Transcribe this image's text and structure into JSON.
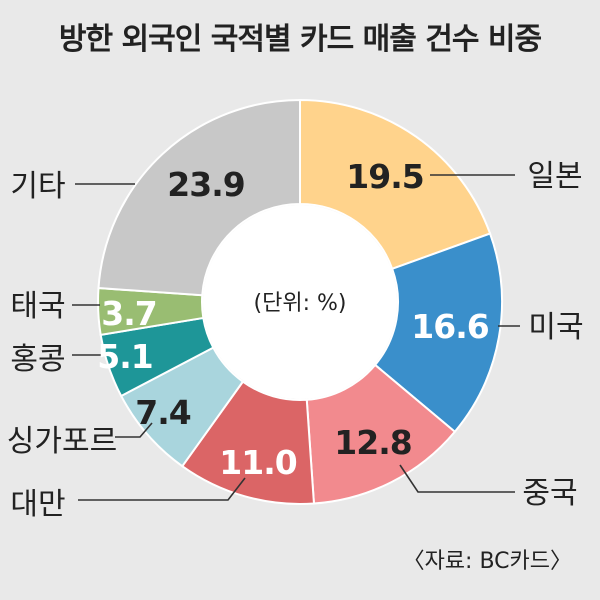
{
  "title": "방한 외국인 국적별 카드 매출 건수 비중",
  "source": "〈자료: BC카드〉",
  "chart_data": {
    "type": "pie",
    "variant": "donut",
    "center_label": "(단위: %)",
    "slices": [
      {
        "label": "일본",
        "value": 19.5,
        "value_text": "19.5",
        "color": "#ffd38c"
      },
      {
        "label": "미국",
        "value": 16.6,
        "value_text": "16.6",
        "color": "#3a8fcb"
      },
      {
        "label": "중국",
        "value": 12.8,
        "value_text": "12.8",
        "color": "#f28a8e"
      },
      {
        "label": "대만",
        "value": 11.0,
        "value_text": "11.0",
        "color": "#db6566"
      },
      {
        "label": "싱가포르",
        "value": 7.4,
        "value_text": "7.4",
        "color": "#a9d5dd"
      },
      {
        "label": "홍콩",
        "value": 5.1,
        "value_text": "5.1",
        "color": "#1e9698"
      },
      {
        "label": "태국",
        "value": 3.7,
        "value_text": "3.7",
        "color": "#99bd72"
      },
      {
        "label": "기타",
        "value": 23.9,
        "value_text": "23.9",
        "color": "#c8c8c8"
      }
    ]
  }
}
